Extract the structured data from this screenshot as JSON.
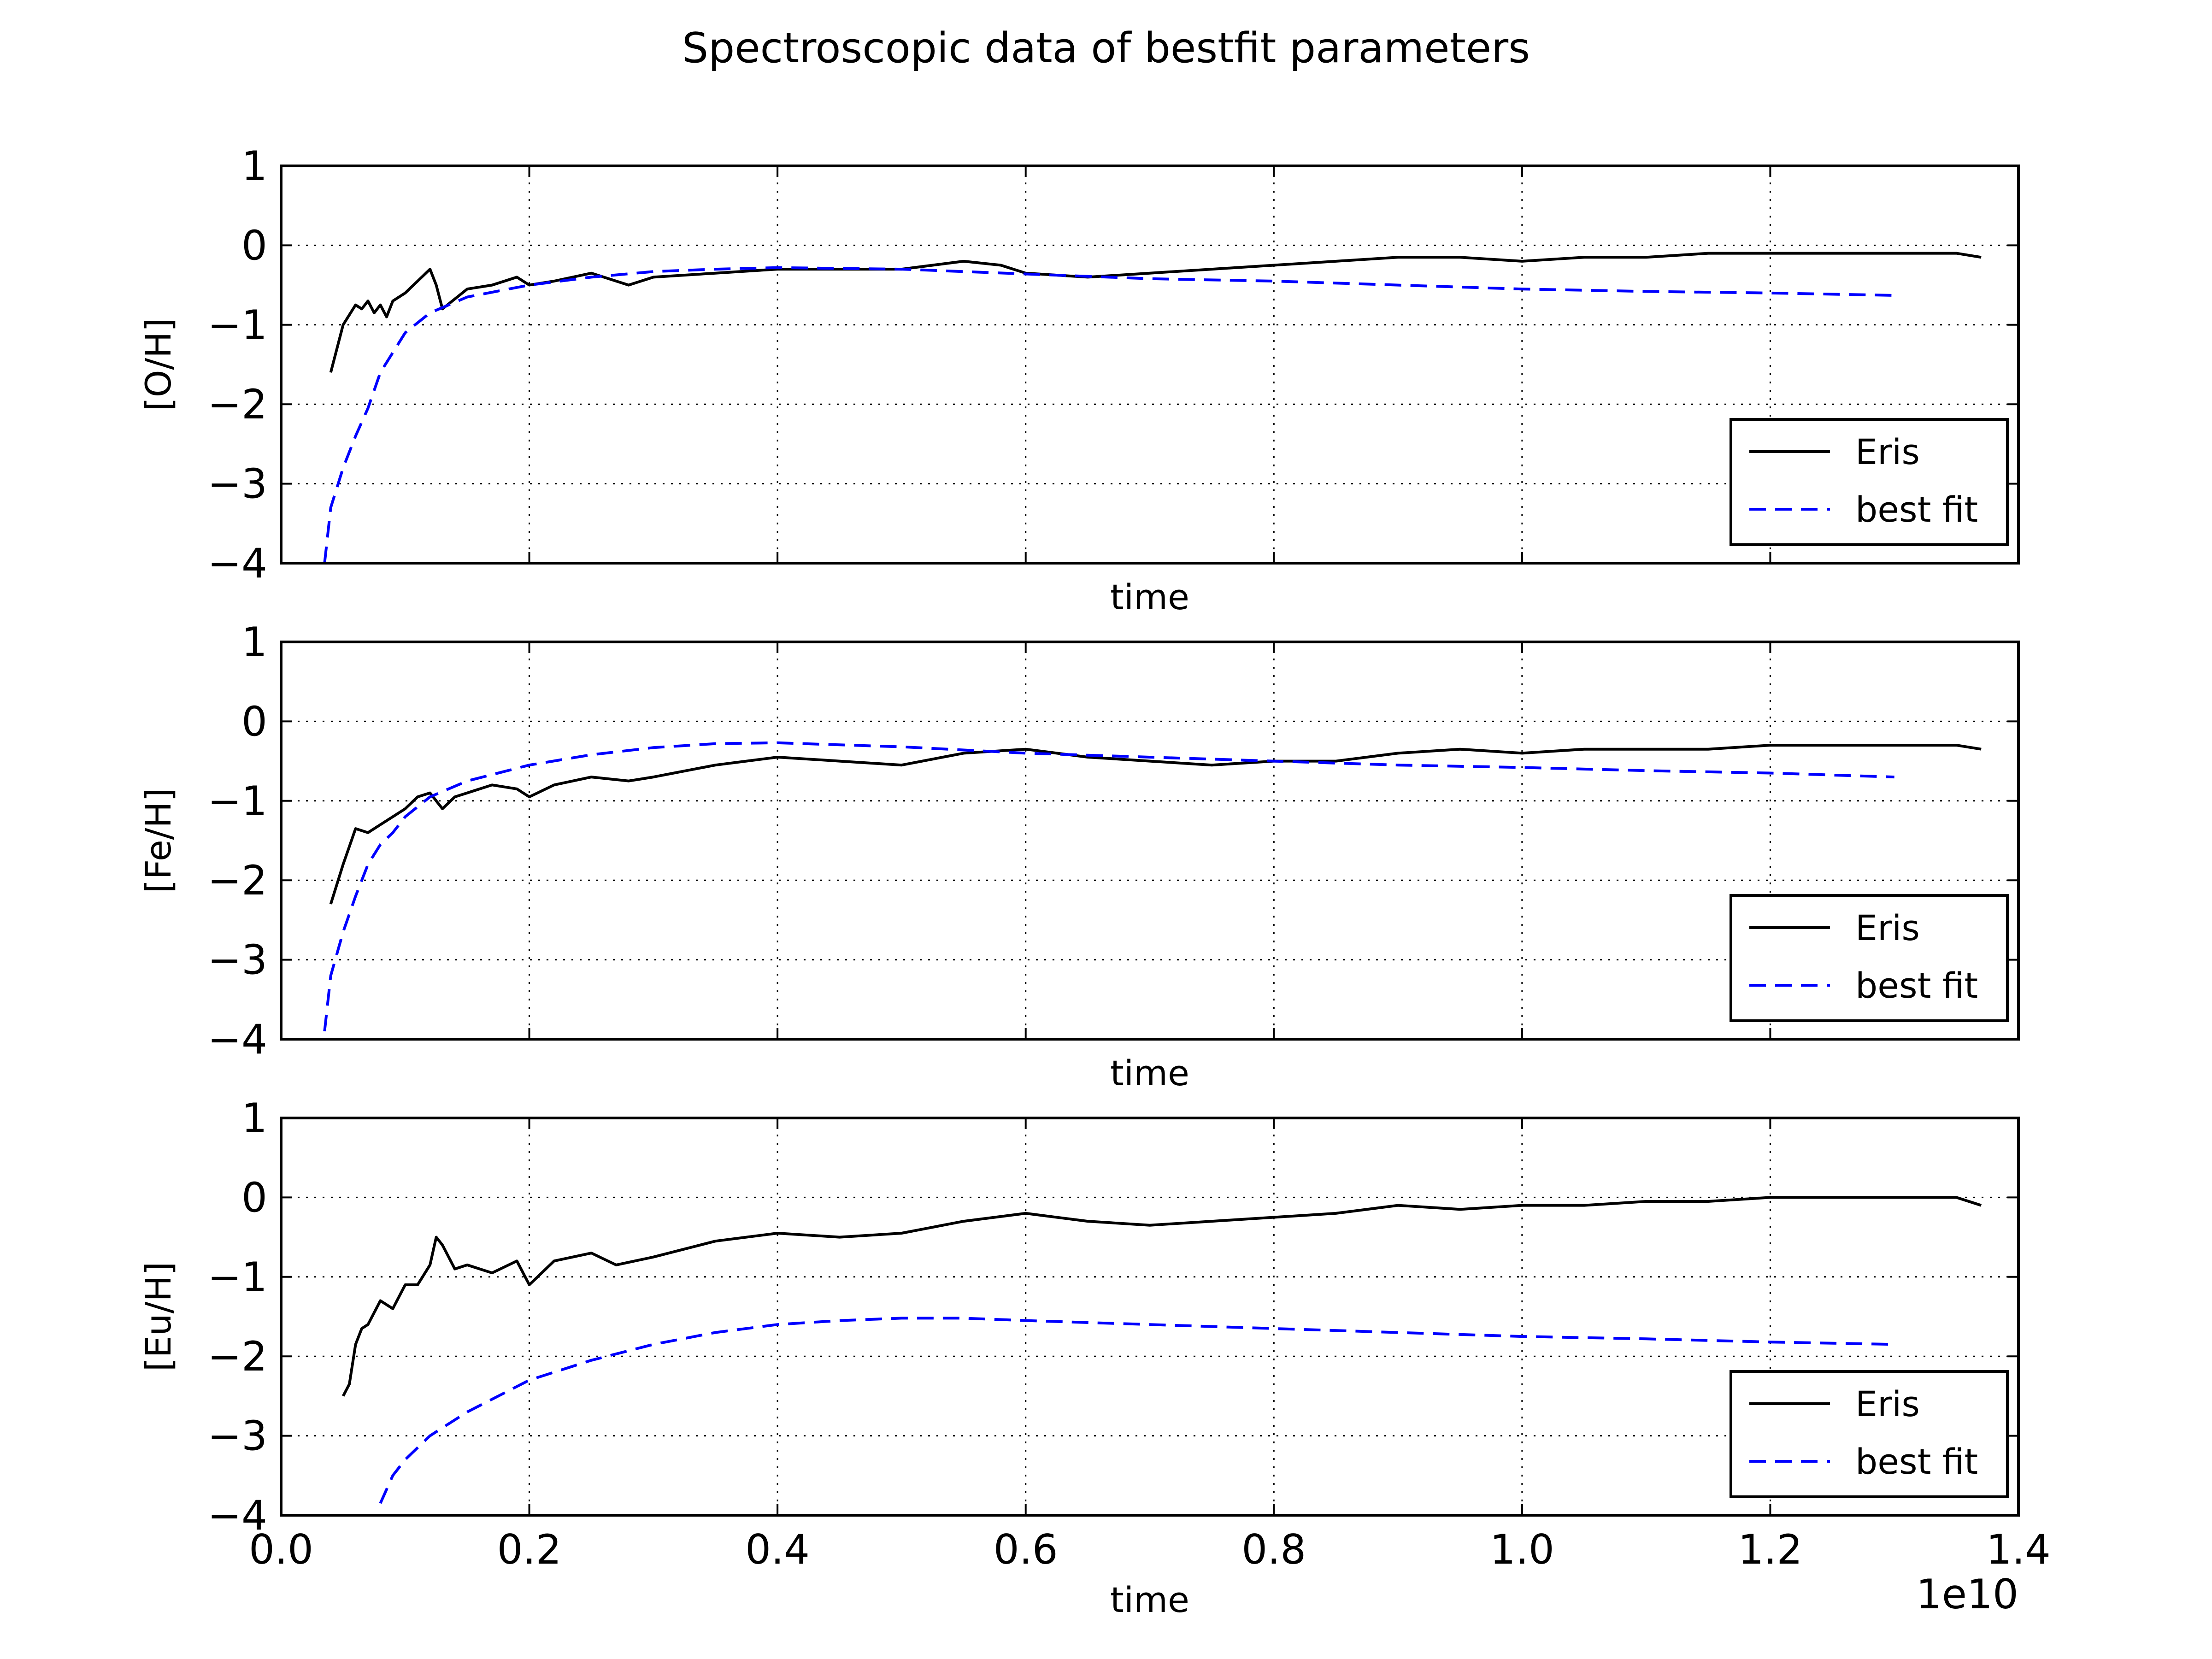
{
  "chart_data": {
    "type": "line",
    "title": "Spectroscopic data of bestfit parameters",
    "x_scale_label": "1e10",
    "xlim": [
      0.0,
      1.4
    ],
    "xticks": [
      "0.0",
      "0.2",
      "0.4",
      "0.6",
      "0.8",
      "1.0",
      "1.2",
      "1.4"
    ],
    "grid": true,
    "legend_loc": "lower right",
    "colors": {
      "Eris": "#000000",
      "best fit": "#0000ff"
    },
    "subplots": [
      {
        "xlabel": "time",
        "ylabel": "[O/H]",
        "ylim": [
          -4,
          1
        ],
        "yticks": [
          "1",
          "0",
          "−1",
          "−2",
          "−3",
          "−4"
        ],
        "legend": [
          "Eris",
          "best fit"
        ],
        "series": [
          {
            "name": "Eris",
            "style": "solid",
            "x": [
              0.04,
              0.05,
              0.06,
              0.065,
              0.07,
              0.075,
              0.08,
              0.085,
              0.09,
              0.1,
              0.11,
              0.12,
              0.125,
              0.13,
              0.15,
              0.17,
              0.19,
              0.2,
              0.22,
              0.25,
              0.28,
              0.3,
              0.35,
              0.4,
              0.45,
              0.5,
              0.55,
              0.58,
              0.6,
              0.65,
              0.7,
              0.75,
              0.8,
              0.85,
              0.9,
              0.95,
              1.0,
              1.05,
              1.1,
              1.15,
              1.2,
              1.25,
              1.3,
              1.35,
              1.37
            ],
            "y": [
              -1.6,
              -1.0,
              -0.75,
              -0.8,
              -0.7,
              -0.85,
              -0.75,
              -0.9,
              -0.7,
              -0.6,
              -0.45,
              -0.3,
              -0.5,
              -0.8,
              -0.55,
              -0.5,
              -0.4,
              -0.5,
              -0.45,
              -0.35,
              -0.5,
              -0.4,
              -0.35,
              -0.3,
              -0.3,
              -0.3,
              -0.2,
              -0.25,
              -0.35,
              -0.4,
              -0.35,
              -0.3,
              -0.25,
              -0.2,
              -0.15,
              -0.15,
              -0.2,
              -0.15,
              -0.15,
              -0.1,
              -0.1,
              -0.1,
              -0.1,
              -0.1,
              -0.15
            ]
          },
          {
            "name": "best fit",
            "style": "dashed",
            "x": [
              0.035,
              0.04,
              0.05,
              0.06,
              0.07,
              0.08,
              0.09,
              0.1,
              0.12,
              0.15,
              0.2,
              0.25,
              0.3,
              0.35,
              0.4,
              0.5,
              0.6,
              0.7,
              0.8,
              0.9,
              1.0,
              1.1,
              1.2,
              1.3
            ],
            "y": [
              -4.0,
              -3.3,
              -2.8,
              -2.4,
              -2.05,
              -1.6,
              -1.35,
              -1.1,
              -0.85,
              -0.65,
              -0.5,
              -0.4,
              -0.33,
              -0.3,
              -0.28,
              -0.3,
              -0.36,
              -0.42,
              -0.45,
              -0.5,
              -0.55,
              -0.58,
              -0.6,
              -0.63
            ]
          }
        ]
      },
      {
        "xlabel": "time",
        "ylabel": "[Fe/H]",
        "ylim": [
          -4,
          1
        ],
        "yticks": [
          "1",
          "0",
          "−1",
          "−2",
          "−3",
          "−4"
        ],
        "legend": [
          "Eris",
          "best fit"
        ],
        "series": [
          {
            "name": "Eris",
            "style": "solid",
            "x": [
              0.04,
              0.05,
              0.06,
              0.07,
              0.08,
              0.09,
              0.1,
              0.11,
              0.12,
              0.13,
              0.14,
              0.15,
              0.17,
              0.19,
              0.2,
              0.22,
              0.25,
              0.28,
              0.3,
              0.35,
              0.4,
              0.45,
              0.5,
              0.55,
              0.6,
              0.65,
              0.7,
              0.75,
              0.8,
              0.85,
              0.9,
              0.95,
              1.0,
              1.05,
              1.1,
              1.15,
              1.2,
              1.25,
              1.3,
              1.35,
              1.37
            ],
            "y": [
              -2.3,
              -1.8,
              -1.35,
              -1.4,
              -1.3,
              -1.2,
              -1.1,
              -0.95,
              -0.9,
              -1.1,
              -0.95,
              -0.9,
              -0.8,
              -0.85,
              -0.95,
              -0.8,
              -0.7,
              -0.75,
              -0.7,
              -0.55,
              -0.45,
              -0.5,
              -0.55,
              -0.4,
              -0.35,
              -0.45,
              -0.5,
              -0.55,
              -0.5,
              -0.5,
              -0.4,
              -0.35,
              -0.4,
              -0.35,
              -0.35,
              -0.35,
              -0.3,
              -0.3,
              -0.3,
              -0.3,
              -0.35
            ]
          },
          {
            "name": "best fit",
            "style": "dashed",
            "x": [
              0.035,
              0.04,
              0.05,
              0.06,
              0.07,
              0.08,
              0.09,
              0.1,
              0.12,
              0.15,
              0.2,
              0.25,
              0.3,
              0.35,
              0.4,
              0.5,
              0.6,
              0.7,
              0.8,
              0.9,
              1.0,
              1.1,
              1.2,
              1.3
            ],
            "y": [
              -3.9,
              -3.2,
              -2.65,
              -2.2,
              -1.8,
              -1.55,
              -1.4,
              -1.2,
              -0.95,
              -0.75,
              -0.55,
              -0.42,
              -0.33,
              -0.28,
              -0.27,
              -0.32,
              -0.4,
              -0.45,
              -0.5,
              -0.55,
              -0.58,
              -0.62,
              -0.65,
              -0.7
            ]
          }
        ]
      },
      {
        "xlabel": "time",
        "ylabel": "[Eu/H]",
        "ylim": [
          -4,
          1
        ],
        "yticks": [
          "1",
          "0",
          "−1",
          "−2",
          "−3",
          "−4"
        ],
        "legend": [
          "Eris",
          "best fit"
        ],
        "series": [
          {
            "name": "Eris",
            "style": "solid",
            "x": [
              0.05,
              0.055,
              0.06,
              0.065,
              0.07,
              0.08,
              0.09,
              0.1,
              0.11,
              0.12,
              0.125,
              0.13,
              0.14,
              0.15,
              0.17,
              0.19,
              0.2,
              0.22,
              0.25,
              0.27,
              0.3,
              0.35,
              0.4,
              0.45,
              0.5,
              0.55,
              0.6,
              0.65,
              0.7,
              0.75,
              0.8,
              0.85,
              0.9,
              0.95,
              1.0,
              1.05,
              1.1,
              1.15,
              1.2,
              1.25,
              1.3,
              1.35,
              1.37
            ],
            "y": [
              -2.5,
              -2.35,
              -1.85,
              -1.65,
              -1.6,
              -1.3,
              -1.4,
              -1.1,
              -1.1,
              -0.85,
              -0.5,
              -0.6,
              -0.9,
              -0.85,
              -0.95,
              -0.8,
              -1.1,
              -0.8,
              -0.7,
              -0.85,
              -0.75,
              -0.55,
              -0.45,
              -0.5,
              -0.45,
              -0.3,
              -0.2,
              -0.3,
              -0.35,
              -0.3,
              -0.25,
              -0.2,
              -0.1,
              -0.15,
              -0.1,
              -0.1,
              -0.05,
              -0.05,
              0.0,
              0.0,
              0.0,
              0.0,
              -0.1
            ]
          },
          {
            "name": "best fit",
            "style": "dashed",
            "x": [
              0.08,
              0.09,
              0.1,
              0.12,
              0.15,
              0.2,
              0.25,
              0.3,
              0.35,
              0.4,
              0.45,
              0.5,
              0.55,
              0.6,
              0.7,
              0.8,
              0.9,
              1.0,
              1.1,
              1.2,
              1.3
            ],
            "y": [
              -3.85,
              -3.5,
              -3.3,
              -3.0,
              -2.7,
              -2.3,
              -2.05,
              -1.85,
              -1.7,
              -1.6,
              -1.55,
              -1.52,
              -1.52,
              -1.55,
              -1.6,
              -1.65,
              -1.7,
              -1.75,
              -1.78,
              -1.82,
              -1.85
            ]
          }
        ]
      }
    ]
  }
}
